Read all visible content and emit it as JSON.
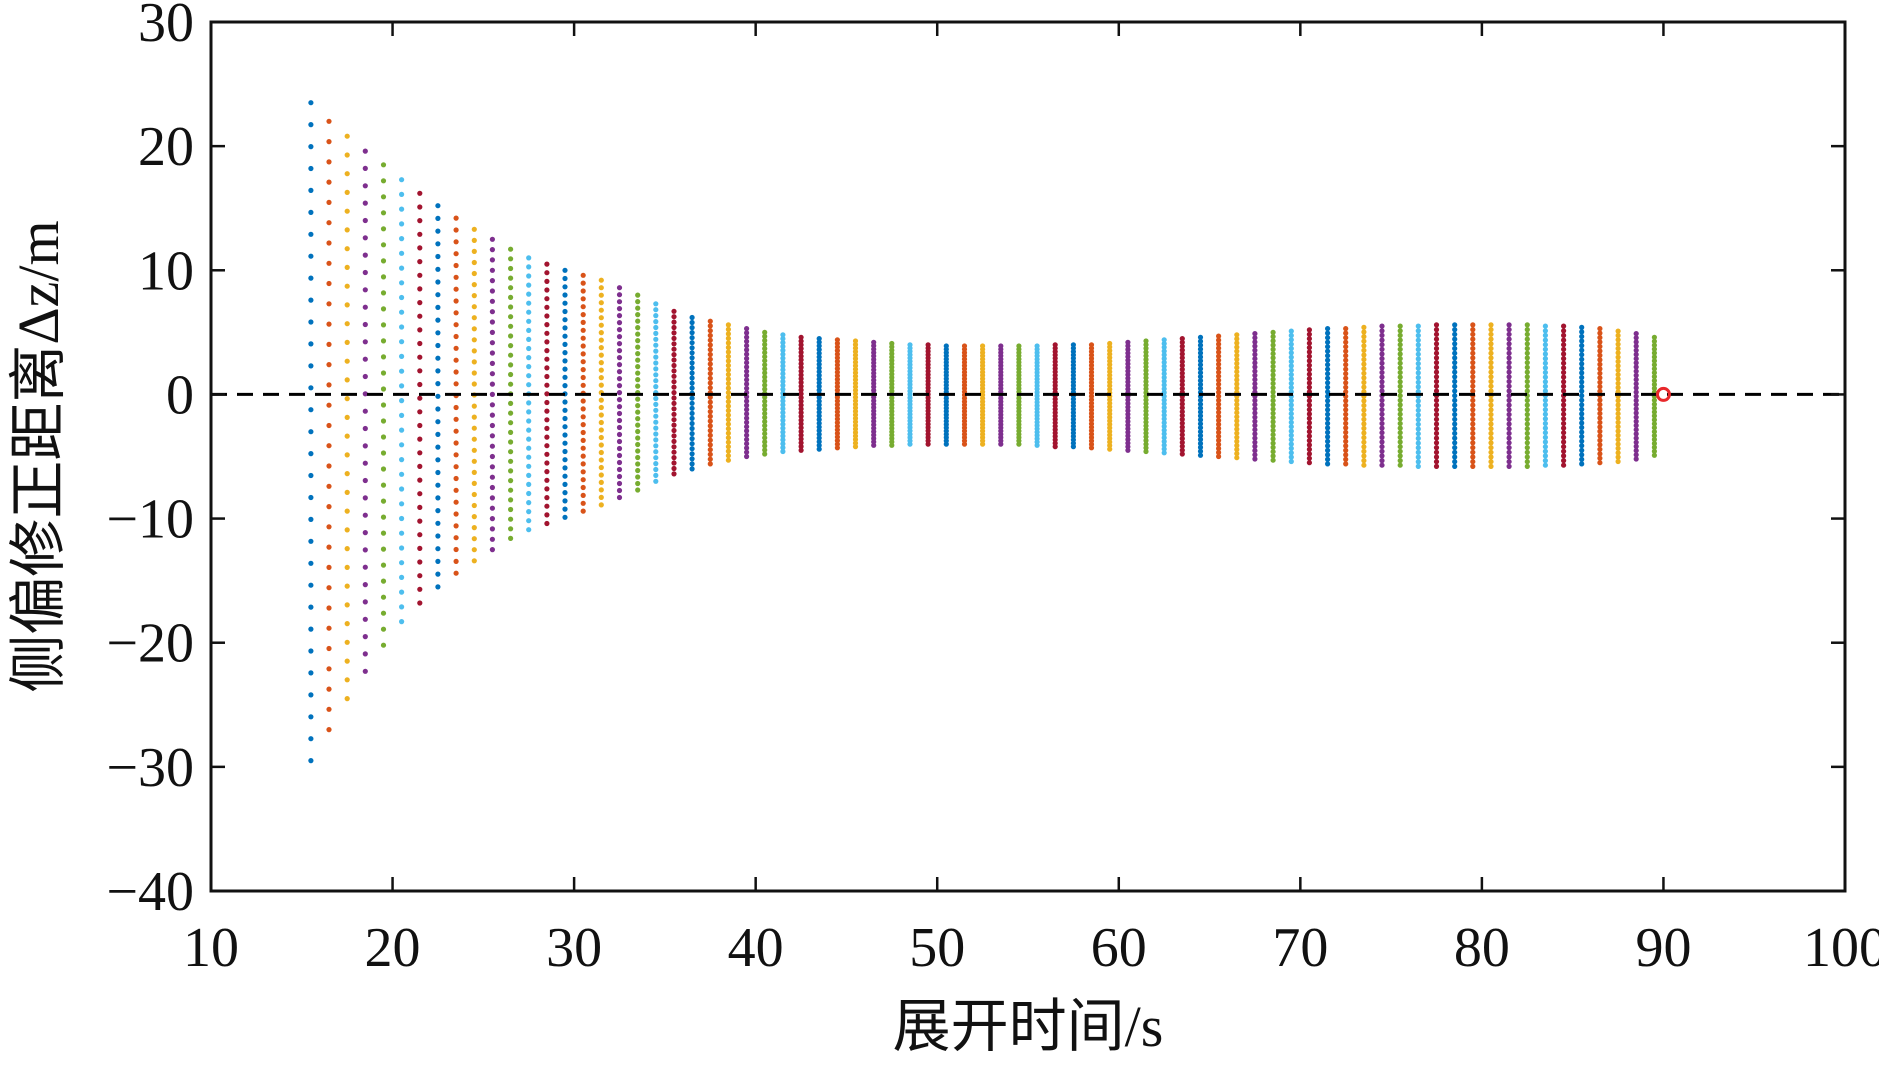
{
  "chart_data": {
    "type": "scatter",
    "title": "",
    "xlabel": "展开时间/s",
    "ylabel": "侧偏修正距离Δz/m",
    "xlim": [
      10,
      100
    ],
    "ylim": [
      -40,
      30
    ],
    "xticks": [
      10,
      20,
      30,
      40,
      50,
      60,
      70,
      80,
      90,
      100
    ],
    "yticks": [
      30,
      20,
      10,
      0,
      -10,
      -20,
      -30,
      -40
    ],
    "xtick_labels": [
      "10",
      "20",
      "30",
      "40",
      "50",
      "60",
      "70",
      "80",
      "90",
      "100"
    ],
    "ytick_labels": [
      "30",
      "20",
      "10",
      "0",
      "−10",
      "−20",
      "−30",
      "−40"
    ],
    "grid": false,
    "reference_line": {
      "y": 0,
      "style": "dashed",
      "color": "#000000"
    },
    "colors": [
      "#0072BD",
      "#D95319",
      "#EDB120",
      "#7E2F8E",
      "#77AC30",
      "#4DBEEE",
      "#A2142F"
    ],
    "column_series": {
      "x": [
        15.5,
        16.5,
        17.5,
        18.5,
        19.5,
        20.5,
        21.5,
        22.5,
        23.5,
        24.5,
        25.5,
        26.5,
        27.5,
        28.5,
        29.5,
        30.5,
        31.5,
        32.5,
        33.5,
        34.5,
        35.5,
        36.5,
        37.5,
        38.5,
        39.5,
        40.5,
        41.5,
        42.5,
        43.5,
        44.5,
        45.5,
        46.5,
        47.5,
        48.5,
        49.5,
        50.5,
        51.5,
        52.5,
        53.5,
        54.5,
        55.5,
        56.5,
        57.5,
        58.5,
        59.5,
        60.5,
        61.5,
        62.5,
        63.5,
        64.5,
        65.5,
        66.5,
        67.5,
        68.5,
        69.5,
        70.5,
        71.5,
        72.5,
        73.5,
        74.5,
        75.5,
        76.5,
        77.5,
        78.5,
        79.5,
        80.5,
        81.5,
        82.5,
        83.5,
        84.5,
        85.5,
        86.5,
        87.5,
        88.5,
        89.5
      ],
      "y_max": [
        23.5,
        22.0,
        20.8,
        19.6,
        18.5,
        17.3,
        16.2,
        15.2,
        14.2,
        13.3,
        12.5,
        11.7,
        11.0,
        10.5,
        10.0,
        9.6,
        9.2,
        8.6,
        8.0,
        7.3,
        6.7,
        6.2,
        5.9,
        5.6,
        5.3,
        5.0,
        4.8,
        4.6,
        4.5,
        4.4,
        4.3,
        4.2,
        4.1,
        4.0,
        4.0,
        3.9,
        3.9,
        3.9,
        3.9,
        3.9,
        3.9,
        4.0,
        4.0,
        4.0,
        4.1,
        4.2,
        4.3,
        4.4,
        4.5,
        4.6,
        4.7,
        4.8,
        4.9,
        5.0,
        5.1,
        5.2,
        5.3,
        5.3,
        5.4,
        5.5,
        5.5,
        5.5,
        5.6,
        5.6,
        5.6,
        5.6,
        5.6,
        5.6,
        5.5,
        5.5,
        5.4,
        5.3,
        5.1,
        4.9,
        4.6
      ],
      "y_min": [
        -29.5,
        -27.0,
        -24.5,
        -22.3,
        -20.2,
        -18.3,
        -16.8,
        -15.5,
        -14.4,
        -13.4,
        -12.5,
        -11.6,
        -10.9,
        -10.4,
        -9.9,
        -9.4,
        -8.9,
        -8.3,
        -7.7,
        -7.0,
        -6.4,
        -6.0,
        -5.6,
        -5.3,
        -5.0,
        -4.8,
        -4.6,
        -4.5,
        -4.4,
        -4.3,
        -4.2,
        -4.1,
        -4.1,
        -4.0,
        -4.0,
        -4.0,
        -4.0,
        -4.0,
        -4.0,
        -4.0,
        -4.1,
        -4.2,
        -4.2,
        -4.3,
        -4.4,
        -4.5,
        -4.6,
        -4.7,
        -4.8,
        -4.9,
        -5.0,
        -5.1,
        -5.2,
        -5.3,
        -5.4,
        -5.5,
        -5.6,
        -5.6,
        -5.7,
        -5.7,
        -5.7,
        -5.8,
        -5.8,
        -5.8,
        -5.8,
        -5.8,
        -5.8,
        -5.8,
        -5.7,
        -5.7,
        -5.6,
        -5.5,
        -5.4,
        -5.2,
        -4.9
      ],
      "points_per_column": 31
    },
    "highlight_point": {
      "x": 90,
      "y": 0,
      "color": "#E8282B"
    }
  }
}
